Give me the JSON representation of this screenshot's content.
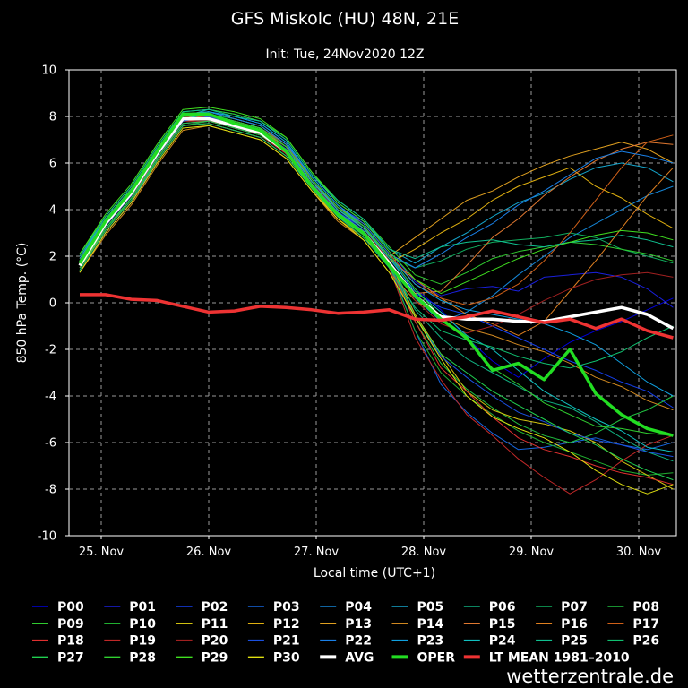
{
  "chart_data": {
    "type": "line",
    "title": "GFS Miskolc (HU) 48N, 21E",
    "subtitle": "Init: Tue, 24Nov2020 12Z",
    "xlabel": "Local time (UTC+1)",
    "ylabel": "850 hPa Temp. (°C)",
    "xlim": [
      -0.3,
      5.35
    ],
    "ylim": [
      -10,
      10
    ],
    "x_ticks": [
      {
        "label": "25. Nov",
        "x": 0
      },
      {
        "label": "26. Nov",
        "x": 1
      },
      {
        "label": "27. Nov",
        "x": 2
      },
      {
        "label": "28. Nov",
        "x": 3
      },
      {
        "label": "29. Nov",
        "x": 4
      },
      {
        "label": "30. Nov",
        "x": 5
      }
    ],
    "y_ticks": [
      10,
      8,
      6,
      4,
      2,
      0,
      -2,
      -4,
      -6,
      -8,
      -10
    ],
    "grid": true,
    "legend_position": "bottom",
    "credit": "wetterzentrale.de",
    "series": [
      {
        "name": "P00",
        "color": "#0000dd",
        "width": 1,
        "values": [
          1.5,
          3.2,
          4.5,
          6.2,
          7.7,
          7.8,
          7.5,
          7.2,
          6.4,
          5.0,
          4.0,
          3.2,
          2.0,
          0.6,
          -0.3,
          -1.5,
          -2.5,
          -3.2,
          -2.4,
          -1.7,
          -1.2,
          -0.8,
          -0.3,
          0.2
        ]
      },
      {
        "name": "P01",
        "color": "#1a20dd",
        "width": 1,
        "values": [
          1.8,
          3.3,
          4.7,
          6.4,
          7.9,
          8.0,
          7.6,
          7.4,
          6.6,
          5.2,
          4.1,
          3.5,
          2.2,
          0.9,
          0.3,
          0.6,
          0.7,
          0.5,
          1.1,
          1.2,
          1.3,
          1.1,
          0.6,
          -0.2
        ]
      },
      {
        "name": "P02",
        "color": "#1540ee",
        "width": 1,
        "values": [
          1.3,
          3.0,
          4.3,
          6.1,
          7.6,
          7.8,
          7.6,
          7.3,
          6.5,
          5.1,
          3.9,
          3.2,
          2.0,
          0.4,
          -0.2,
          -0.5,
          -1.0,
          -1.5,
          -2.0,
          -2.5,
          -2.9,
          -3.4,
          -3.8,
          -4.5
        ]
      },
      {
        "name": "P03",
        "color": "#1565dd",
        "width": 1,
        "values": [
          1.7,
          3.5,
          4.6,
          6.3,
          8.0,
          8.1,
          7.8,
          7.5,
          6.8,
          5.0,
          3.9,
          3.1,
          1.6,
          -1.2,
          -3.5,
          -4.7,
          -5.6,
          -6.3,
          -6.2,
          -6.0,
          -5.8,
          -6.1,
          -6.3,
          -6.0
        ]
      },
      {
        "name": "P04",
        "color": "#1585d5",
        "width": 1,
        "values": [
          1.6,
          3.4,
          4.9,
          6.5,
          8.1,
          8.2,
          8.0,
          7.7,
          6.9,
          5.3,
          4.0,
          3.3,
          1.8,
          0.2,
          -0.8,
          -0.4,
          0.3,
          1.2,
          2.0,
          2.8,
          3.4,
          4.0,
          4.6,
          5.0
        ]
      },
      {
        "name": "P05",
        "color": "#15a5cc",
        "width": 1,
        "values": [
          2.0,
          3.6,
          4.8,
          6.6,
          8.0,
          8.3,
          8.1,
          7.8,
          7.0,
          5.5,
          4.3,
          3.5,
          2.3,
          1.7,
          2.4,
          3.0,
          3.7,
          4.3,
          4.7,
          5.3,
          5.8,
          6.0,
          5.8,
          5.2
        ]
      },
      {
        "name": "P06",
        "color": "#10b080",
        "width": 1,
        "values": [
          1.9,
          3.5,
          4.9,
          6.5,
          8.0,
          8.0,
          7.7,
          7.4,
          6.6,
          5.1,
          3.9,
          3.0,
          1.8,
          -0.3,
          -1.5,
          -2.4,
          -3.0,
          -3.6,
          -4.2,
          -4.5,
          -5.1,
          -5.8,
          -6.4,
          -6.8
        ]
      },
      {
        "name": "P07",
        "color": "#10b060",
        "width": 1,
        "values": [
          1.7,
          3.4,
          4.8,
          6.4,
          7.9,
          8.1,
          7.9,
          7.6,
          6.8,
          5.3,
          4.1,
          3.2,
          2.0,
          1.5,
          1.8,
          2.3,
          2.6,
          2.7,
          2.8,
          3.0,
          2.8,
          2.3,
          2.0,
          1.7
        ]
      },
      {
        "name": "P08",
        "color": "#20c040",
        "width": 1,
        "values": [
          1.6,
          3.2,
          4.5,
          6.2,
          7.8,
          8.0,
          7.7,
          7.4,
          6.6,
          5.1,
          3.9,
          3.1,
          1.6,
          -0.8,
          -2.6,
          -3.7,
          -4.5,
          -5.2,
          -5.7,
          -6.0,
          -5.6,
          -5.0,
          -4.6,
          -4.0
        ]
      },
      {
        "name": "P09",
        "color": "#30cc30",
        "width": 1,
        "values": [
          2.1,
          3.7,
          5.0,
          6.7,
          8.2,
          8.3,
          8.1,
          7.8,
          7.1,
          5.6,
          4.4,
          3.6,
          2.4,
          1.2,
          0.8,
          1.3,
          1.9,
          2.2,
          2.4,
          2.6,
          2.5,
          2.3,
          2.1,
          1.8
        ]
      },
      {
        "name": "P10",
        "color": "#20b030",
        "width": 1,
        "values": [
          1.4,
          3.1,
          4.5,
          6.1,
          7.6,
          7.8,
          7.5,
          7.2,
          6.4,
          5.0,
          3.7,
          2.9,
          1.5,
          -1.2,
          -3.0,
          -4.0,
          -4.8,
          -5.5,
          -6.0,
          -6.4,
          -6.8,
          -7.2,
          -7.4,
          -7.3
        ]
      },
      {
        "name": "P11",
        "color": "#d0c010",
        "width": 1,
        "values": [
          1.8,
          3.4,
          4.7,
          6.4,
          8.0,
          8.1,
          7.8,
          7.5,
          6.7,
          5.2,
          4.0,
          3.2,
          1.8,
          -0.5,
          -2.2,
          -3.8,
          -4.6,
          -5.0,
          -5.2,
          -5.5,
          -6.0,
          -6.8,
          -7.4,
          -8.0
        ]
      },
      {
        "name": "P12",
        "color": "#e0b010",
        "width": 1,
        "values": [
          1.5,
          3.1,
          4.4,
          6.1,
          7.6,
          7.7,
          7.4,
          7.1,
          6.3,
          4.9,
          3.6,
          2.8,
          1.7,
          2.3,
          3.0,
          3.6,
          4.4,
          5.0,
          5.4,
          5.8,
          5.0,
          4.5,
          3.8,
          3.2
        ]
      },
      {
        "name": "P13",
        "color": "#e0a020",
        "width": 1,
        "values": [
          1.9,
          3.6,
          4.9,
          6.6,
          8.1,
          8.2,
          7.9,
          7.6,
          6.8,
          5.3,
          4.1,
          3.3,
          2.0,
          2.8,
          3.6,
          4.4,
          4.8,
          5.4,
          5.9,
          6.3,
          6.6,
          6.9,
          6.6,
          6.0
        ]
      },
      {
        "name": "P14",
        "color": "#d08820",
        "width": 1,
        "values": [
          1.3,
          2.9,
          4.2,
          5.9,
          7.4,
          7.6,
          7.3,
          7.0,
          6.2,
          4.8,
          3.5,
          2.7,
          1.3,
          0.1,
          -0.6,
          -1.1,
          -1.4,
          -1.8,
          -2.1,
          -2.6,
          -3.2,
          -3.6,
          -4.2,
          -4.6
        ]
      },
      {
        "name": "P15",
        "color": "#e07830",
        "width": 1,
        "values": [
          1.6,
          3.3,
          4.6,
          6.3,
          7.8,
          7.9,
          7.6,
          7.3,
          6.5,
          5.0,
          3.8,
          3.0,
          1.6,
          0.4,
          0.5,
          1.6,
          2.8,
          3.6,
          4.6,
          5.4,
          6.1,
          6.6,
          6.9,
          6.8
        ]
      },
      {
        "name": "P16",
        "color": "#e08020",
        "width": 1,
        "values": [
          1.8,
          3.5,
          4.8,
          6.5,
          8.0,
          8.0,
          7.7,
          7.4,
          6.7,
          5.2,
          4.0,
          3.2,
          1.9,
          1.0,
          0.2,
          -0.5,
          -0.9,
          -1.4,
          -0.8,
          0.5,
          1.8,
          3.2,
          4.6,
          5.8
        ]
      },
      {
        "name": "P17",
        "color": "#d06018",
        "width": 1,
        "values": [
          1.7,
          3.4,
          4.7,
          6.3,
          7.9,
          8.0,
          7.8,
          7.5,
          6.8,
          5.3,
          4.1,
          3.4,
          2.1,
          0.8,
          0.2,
          -0.1,
          0.2,
          0.8,
          1.8,
          3.0,
          4.4,
          5.8,
          6.9,
          7.2
        ]
      },
      {
        "name": "P18",
        "color": "#e03030",
        "width": 1,
        "values": [
          1.6,
          3.3,
          4.6,
          6.2,
          7.7,
          7.8,
          7.5,
          7.2,
          6.4,
          5.0,
          3.8,
          3.0,
          1.6,
          -0.8,
          -2.8,
          -3.8,
          -4.9,
          -5.8,
          -6.3,
          -6.6,
          -7.0,
          -7.3,
          -7.5,
          -7.8
        ]
      },
      {
        "name": "P19",
        "color": "#c02828",
        "width": 1,
        "values": [
          1.5,
          3.3,
          4.6,
          6.3,
          7.8,
          7.8,
          7.6,
          7.2,
          6.4,
          5.0,
          3.8,
          3.1,
          1.5,
          -1.5,
          -3.3,
          -4.8,
          -5.7,
          -6.7,
          -7.5,
          -8.2,
          -7.6,
          -6.8,
          -6.1,
          -5.7
        ]
      },
      {
        "name": "P20",
        "color": "#a02020",
        "width": 1,
        "values": [
          1.7,
          3.4,
          4.7,
          6.3,
          7.9,
          8.0,
          7.8,
          7.4,
          6.6,
          5.1,
          4.0,
          3.2,
          1.8,
          0.1,
          -0.9,
          -1.3,
          -1.0,
          -0.5,
          0.1,
          0.6,
          1.0,
          1.2,
          1.3,
          1.1
        ]
      },
      {
        "name": "P21",
        "color": "#1a50e0",
        "width": 1,
        "values": [
          1.6,
          3.3,
          4.6,
          6.3,
          7.8,
          8.0,
          7.7,
          7.4,
          6.6,
          5.1,
          3.9,
          3.1,
          1.7,
          -0.6,
          -2.3,
          -3.2,
          -4.0,
          -4.7,
          -5.1,
          -5.6,
          -5.9,
          -6.1,
          -6.4,
          -6.6
        ]
      },
      {
        "name": "P22",
        "color": "#1a80e8",
        "width": 1,
        "values": [
          1.8,
          3.5,
          4.8,
          6.5,
          8.0,
          8.2,
          7.9,
          7.6,
          6.8,
          5.4,
          4.2,
          3.4,
          2.1,
          1.5,
          2.1,
          2.8,
          3.4,
          4.2,
          4.8,
          5.5,
          6.2,
          6.5,
          6.3,
          6.0
        ]
      },
      {
        "name": "P23",
        "color": "#10a0e0",
        "width": 1,
        "values": [
          1.9,
          3.6,
          4.9,
          6.6,
          8.1,
          8.2,
          8.0,
          7.7,
          6.9,
          5.4,
          4.2,
          3.3,
          2.0,
          0.8,
          0.1,
          -0.3,
          -0.5,
          -0.7,
          -0.9,
          -1.3,
          -1.8,
          -2.6,
          -3.4,
          -4.0
        ]
      },
      {
        "name": "P24",
        "color": "#10c0c0",
        "width": 1,
        "values": [
          1.7,
          3.4,
          4.7,
          6.4,
          7.9,
          8.1,
          7.8,
          7.5,
          6.7,
          5.2,
          4.0,
          3.2,
          1.9,
          0.5,
          -0.4,
          -1.4,
          -2.0,
          -2.9,
          -3.8,
          -4.4,
          -5.0,
          -5.5,
          -6.2,
          -6.4
        ]
      },
      {
        "name": "P25",
        "color": "#10c090",
        "width": 1,
        "values": [
          2.0,
          3.7,
          5.0,
          6.7,
          8.2,
          8.3,
          8.0,
          7.8,
          7.0,
          5.5,
          4.4,
          3.6,
          2.3,
          1.9,
          2.4,
          2.6,
          2.7,
          2.5,
          2.4,
          2.6,
          2.7,
          2.9,
          2.7,
          2.4
        ]
      },
      {
        "name": "P26",
        "color": "#10c070",
        "width": 1,
        "values": [
          1.4,
          3.1,
          4.4,
          6.1,
          7.6,
          7.7,
          7.4,
          7.1,
          6.3,
          4.9,
          3.7,
          2.8,
          1.5,
          -0.2,
          -1.2,
          -1.6,
          -1.9,
          -2.3,
          -2.6,
          -2.8,
          -2.5,
          -2.1,
          -1.5,
          -1.0
        ]
      },
      {
        "name": "P27",
        "color": "#20d050",
        "width": 1,
        "values": [
          1.5,
          3.2,
          4.5,
          6.2,
          7.7,
          7.8,
          7.5,
          7.2,
          6.5,
          5.0,
          3.8,
          3.0,
          1.6,
          -0.6,
          -2.2,
          -3.0,
          -3.8,
          -4.4,
          -5.0,
          -5.6,
          -6.1,
          -6.7,
          -7.2,
          -7.6
        ]
      },
      {
        "name": "P28",
        "color": "#30d030",
        "width": 1,
        "values": [
          1.8,
          3.5,
          4.8,
          6.5,
          8.0,
          8.1,
          7.8,
          7.5,
          6.7,
          5.3,
          4.1,
          3.3,
          2.0,
          0.6,
          -0.6,
          -1.6,
          -2.8,
          -3.5,
          -4.3,
          -4.8,
          -5.3,
          -5.4,
          -5.6,
          -5.7
        ]
      },
      {
        "name": "P29",
        "color": "#40e020",
        "width": 1,
        "values": [
          2.1,
          3.8,
          5.1,
          6.8,
          8.3,
          8.4,
          8.2,
          7.9,
          7.1,
          5.6,
          4.3,
          3.5,
          2.2,
          1.0,
          0.4,
          0.9,
          1.4,
          1.9,
          2.3,
          2.6,
          2.9,
          3.1,
          3.0,
          2.7
        ]
      },
      {
        "name": "P30",
        "color": "#e0e010",
        "width": 1,
        "values": [
          1.3,
          3.0,
          4.3,
          6.0,
          7.5,
          7.6,
          7.3,
          7.0,
          6.2,
          4.8,
          3.6,
          2.7,
          1.3,
          -0.6,
          -2.4,
          -4.0,
          -4.9,
          -5.4,
          -5.8,
          -6.4,
          -7.2,
          -7.8,
          -8.2,
          -7.8
        ]
      },
      {
        "name": "AVG",
        "color": "#ffffff",
        "width": 3.5,
        "values": [
          1.6,
          3.4,
          4.7,
          6.4,
          7.9,
          7.9,
          7.6,
          7.3,
          6.5,
          5.0,
          3.8,
          3.0,
          1.7,
          0.3,
          -0.6,
          -0.7,
          -0.7,
          -0.8,
          -0.8,
          -0.6,
          -0.4,
          -0.2,
          -0.5,
          -1.1
        ]
      },
      {
        "name": "OPER",
        "color": "#22dd22",
        "width": 3.5,
        "values": [
          1.7,
          3.5,
          4.8,
          6.5,
          8.1,
          8.1,
          7.7,
          7.4,
          6.5,
          5.0,
          3.8,
          3.0,
          1.6,
          0.3,
          -0.7,
          -1.5,
          -2.9,
          -2.6,
          -3.3,
          -2.0,
          -3.9,
          -4.8,
          -5.4,
          -5.7
        ]
      },
      {
        "name": "LT MEAN 1981–2010",
        "color": "#ee3333",
        "width": 3.5,
        "values": [
          0.35,
          0.35,
          0.15,
          0.1,
          -0.15,
          -0.4,
          -0.35,
          -0.15,
          -0.2,
          -0.3,
          -0.45,
          -0.4,
          -0.3,
          -0.7,
          -0.75,
          -0.6,
          -0.35,
          -0.6,
          -0.85,
          -0.7,
          -1.1,
          -0.7,
          -1.2,
          -1.5
        ]
      }
    ],
    "x_start": -0.2,
    "x_step": 0.24
  }
}
